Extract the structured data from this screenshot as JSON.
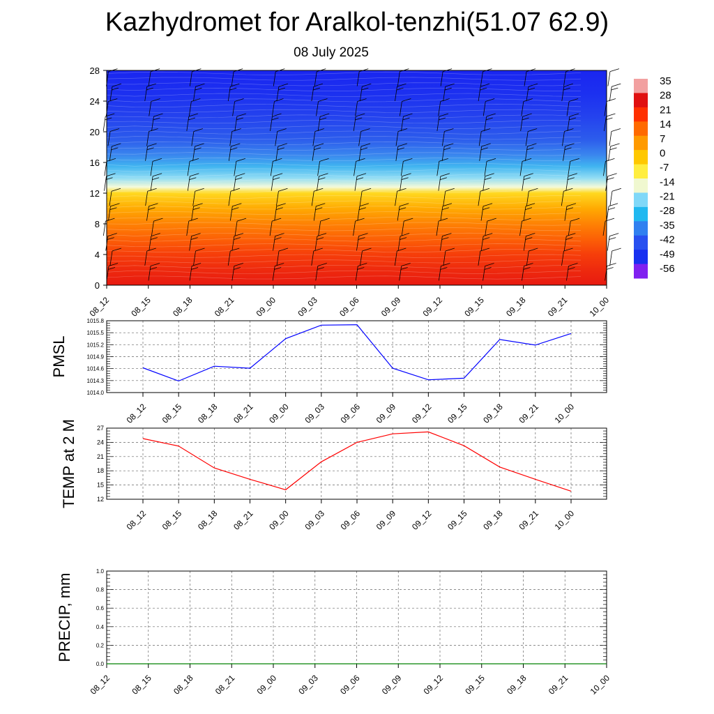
{
  "title": "Kazhydromet for Aralkol-tenzhi(51.07 62.9)",
  "subtitle": "08 July 2025",
  "chart_data": [
    {
      "type": "heatmap",
      "description_vars": "temperature vs height with wind barbs",
      "x_labels": [
        "08_12",
        "08_15",
        "08_18",
        "08_21",
        "09_00",
        "09_03",
        "09_06",
        "09_09",
        "09_12",
        "09_15",
        "09_18",
        "09_21",
        "10_00"
      ],
      "y_ticks": [
        0,
        4,
        8,
        12,
        16,
        20,
        24,
        28
      ],
      "ylim": [
        0,
        28
      ],
      "colorbar": {
        "labels": [
          "35",
          "28",
          "21",
          "14",
          "7",
          "0",
          "-7",
          "-14",
          "-21",
          "-28",
          "-35",
          "-42",
          "-49",
          "-56"
        ],
        "colors": [
          "#f2a0a0",
          "#e01010",
          "#ff3000",
          "#ff6a00",
          "#ff9a00",
          "#ffc800",
          "#ffee40",
          "#f0f8d0",
          "#80d8f8",
          "#20b8f0",
          "#3080f0",
          "#2850f0",
          "#1830f0",
          "#8020f0"
        ]
      },
      "field_rows": [
        {
          "level": 0,
          "color": "#e81a10"
        },
        {
          "level": 2,
          "color": "#ee2a0e"
        },
        {
          "level": 4,
          "color": "#f63e0a"
        },
        {
          "level": 6,
          "color": "#fc6006"
        },
        {
          "level": 8,
          "color": "#fe8204"
        },
        {
          "level": 10,
          "color": "#ffaa02"
        },
        {
          "level": 12,
          "color": "#ffd820"
        },
        {
          "level": 12.8,
          "color": "#f4fad8"
        },
        {
          "level": 14,
          "color": "#90dcf4"
        },
        {
          "level": 15.5,
          "color": "#40b4f0"
        },
        {
          "level": 17,
          "color": "#3a86ee"
        },
        {
          "level": 19,
          "color": "#2c5cec"
        },
        {
          "level": 22,
          "color": "#2442ee"
        },
        {
          "level": 25,
          "color": "#1c30f0"
        },
        {
          "level": 28,
          "color": "#1a26f0"
        }
      ]
    },
    {
      "type": "line",
      "ylabel": "PMSL",
      "x_labels": [
        "08_12",
        "08_15",
        "08_18",
        "08_21",
        "09_00",
        "09_03",
        "09_06",
        "09_09",
        "09_12",
        "09_15",
        "09_18",
        "09_21",
        "10_00"
      ],
      "y_ticks": [
        "1014.0",
        "1014.3",
        "1014.6",
        "1014.9",
        "1015.2",
        "1015.5",
        "1015.8"
      ],
      "ylim": [
        1014.0,
        1015.8
      ],
      "series": [
        {
          "color": "#0000ff",
          "values": [
            1014.62,
            1014.29,
            1014.66,
            1014.61,
            1015.35,
            1015.69,
            1015.7,
            1014.61,
            1014.32,
            1014.36,
            1015.33,
            1015.19,
            1015.48
          ]
        }
      ]
    },
    {
      "type": "line",
      "ylabel": "TEMP at 2 M",
      "x_labels": [
        "08_12",
        "08_15",
        "08_18",
        "08_21",
        "09_00",
        "09_03",
        "09_06",
        "09_09",
        "09_12",
        "09_15",
        "09_18",
        "09_21",
        "10_00"
      ],
      "y_ticks": [
        "12",
        "15",
        "18",
        "21",
        "24",
        "27"
      ],
      "ylim": [
        12,
        27
      ],
      "series": [
        {
          "color": "#ff0000",
          "values": [
            24.8,
            23.2,
            18.6,
            16.2,
            14.0,
            19.9,
            24.0,
            25.8,
            26.2,
            23.3,
            18.8,
            16.2,
            13.7
          ]
        }
      ]
    },
    {
      "type": "line",
      "ylabel": "PRECIP, mm",
      "x_labels": [
        "08_12",
        "08_15",
        "08_18",
        "08_21",
        "09_00",
        "09_03",
        "09_06",
        "09_09",
        "09_12",
        "09_15",
        "09_18",
        "09_21",
        "10_00"
      ],
      "y_ticks": [
        "0.0",
        "0.2",
        "0.4",
        "0.6",
        "0.8",
        "1.0"
      ],
      "ylim": [
        0,
        1
      ],
      "series": [
        {
          "color": "#008000",
          "values": [
            0,
            0,
            0,
            0,
            0,
            0,
            0,
            0,
            0,
            0,
            0,
            0,
            0
          ]
        }
      ]
    }
  ]
}
